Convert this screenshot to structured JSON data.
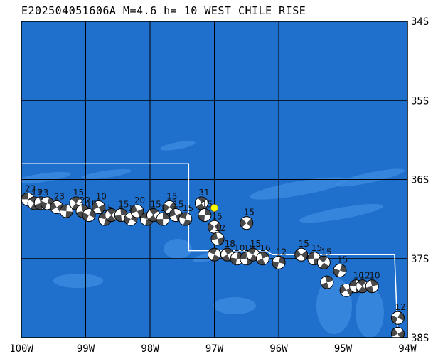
{
  "title": "E202504051606A M=4.6 h= 10 WEST CHILE RISE",
  "map": {
    "lon_range": [
      -100,
      -94
    ],
    "lat_range": [
      -38,
      -34
    ],
    "lon_ticks": [
      {
        "value": -100,
        "label": "100W"
      },
      {
        "value": -99,
        "label": "99W"
      },
      {
        "value": -98,
        "label": "98W"
      },
      {
        "value": -97,
        "label": "97W"
      },
      {
        "value": -96,
        "label": "96W"
      },
      {
        "value": -95,
        "label": "95W"
      },
      {
        "value": -94,
        "label": "94W"
      }
    ],
    "lat_ticks": [
      {
        "value": -34,
        "label": "34S"
      },
      {
        "value": -35,
        "label": "35S"
      },
      {
        "value": -36,
        "label": "36S"
      },
      {
        "value": -37,
        "label": "37S"
      },
      {
        "value": -38,
        "label": "38S"
      }
    ],
    "colors": {
      "ocean": "#1f6fcc",
      "shallow": "#3c8be0",
      "grid": "#000000",
      "plate_boundary": "#ffffff",
      "event": "#ffff00",
      "beachball_dark": "#4a4a4a"
    },
    "plate_boundary": [
      [
        -100.0,
        -35.8
      ],
      [
        -97.4,
        -35.8
      ],
      [
        -97.4,
        -36.9
      ],
      [
        -96.2,
        -36.9
      ],
      [
        -96.1,
        -36.95
      ],
      [
        -94.2,
        -36.95
      ],
      [
        -94.15,
        -38.0
      ]
    ],
    "event": {
      "lon": -97.0,
      "lat": -36.36
    },
    "mechanisms": [
      {
        "lon": -99.9,
        "lat": -36.25,
        "label": "23"
      },
      {
        "lon": -99.8,
        "lat": -36.3,
        "label": "13"
      },
      {
        "lon": -99.7,
        "lat": -36.3,
        "label": "23"
      },
      {
        "lon": -99.6,
        "lat": -36.3,
        "label": ""
      },
      {
        "lon": -99.45,
        "lat": -36.35,
        "label": "23"
      },
      {
        "lon": -99.3,
        "lat": -36.4,
        "label": ""
      },
      {
        "lon": -99.15,
        "lat": -36.3,
        "label": "15"
      },
      {
        "lon": -99.05,
        "lat": -36.4,
        "label": "22"
      },
      {
        "lon": -98.95,
        "lat": -36.45,
        "label": "15"
      },
      {
        "lon": -98.8,
        "lat": -36.35,
        "label": "10"
      },
      {
        "lon": -98.7,
        "lat": -36.5,
        "label": "15"
      },
      {
        "lon": -98.6,
        "lat": -36.45,
        "label": ""
      },
      {
        "lon": -98.45,
        "lat": -36.45,
        "label": "15"
      },
      {
        "lon": -98.3,
        "lat": -36.5,
        "label": "18"
      },
      {
        "lon": -98.2,
        "lat": -36.4,
        "label": "20"
      },
      {
        "lon": -98.05,
        "lat": -36.5,
        "label": ""
      },
      {
        "lon": -97.95,
        "lat": -36.45,
        "label": "15"
      },
      {
        "lon": -97.8,
        "lat": -36.5,
        "label": "15"
      },
      {
        "lon": -97.7,
        "lat": -36.35,
        "label": "15"
      },
      {
        "lon": -97.6,
        "lat": -36.45,
        "label": "15"
      },
      {
        "lon": -97.45,
        "lat": -36.5,
        "label": "15"
      },
      {
        "lon": -97.2,
        "lat": -36.3,
        "label": "31"
      },
      {
        "lon": -97.15,
        "lat": -36.45,
        "label": "15"
      },
      {
        "lon": -97.0,
        "lat": -36.6,
        "label": "15"
      },
      {
        "lon": -96.95,
        "lat": -36.75,
        "label": "12"
      },
      {
        "lon": -97.0,
        "lat": -36.95,
        "label": ""
      },
      {
        "lon": -96.8,
        "lat": -36.95,
        "label": "18"
      },
      {
        "lon": -96.65,
        "lat": -37.0,
        "label": "10"
      },
      {
        "lon": -96.5,
        "lat": -36.55,
        "label": "15"
      },
      {
        "lon": -96.5,
        "lat": -37.0,
        "label": "15"
      },
      {
        "lon": -96.4,
        "lat": -36.95,
        "label": "15"
      },
      {
        "lon": -96.25,
        "lat": -37.0,
        "label": "16"
      },
      {
        "lon": -96.0,
        "lat": -37.05,
        "label": "12"
      },
      {
        "lon": -95.65,
        "lat": -36.95,
        "label": "15"
      },
      {
        "lon": -95.45,
        "lat": -37.0,
        "label": "15"
      },
      {
        "lon": -95.3,
        "lat": -37.05,
        "label": "15"
      },
      {
        "lon": -95.25,
        "lat": -37.3,
        "label": ""
      },
      {
        "lon": -95.05,
        "lat": -37.15,
        "label": "15"
      },
      {
        "lon": -94.95,
        "lat": -37.4,
        "label": ""
      },
      {
        "lon": -94.8,
        "lat": -37.35,
        "label": "10"
      },
      {
        "lon": -94.7,
        "lat": -37.35,
        "label": "12"
      },
      {
        "lon": -94.55,
        "lat": -37.35,
        "label": "10"
      },
      {
        "lon": -94.15,
        "lat": -37.75,
        "label": "12"
      },
      {
        "lon": -94.15,
        "lat": -37.95,
        "label": ""
      }
    ]
  }
}
